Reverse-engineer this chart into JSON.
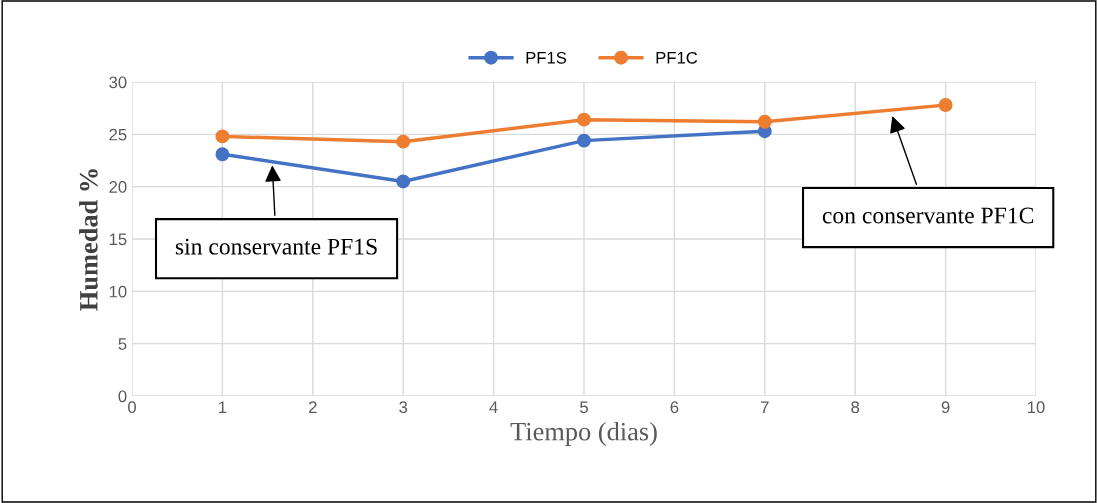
{
  "chart_data": {
    "type": "line",
    "xlabel": "Tiempo (dias)",
    "ylabel": "Humedad %",
    "xlim": [
      0,
      10
    ],
    "xticks": [
      0,
      1,
      2,
      3,
      4,
      5,
      6,
      7,
      8,
      9,
      10
    ],
    "ylim": [
      0,
      30
    ],
    "yticks": [
      0,
      5,
      10,
      15,
      20,
      25,
      30
    ],
    "grid": true,
    "legend": "top",
    "marker": "circle",
    "line_style": "solid",
    "series": [
      {
        "name": "PF1S",
        "color": "#4472c4",
        "x": [
          1,
          3,
          5,
          7
        ],
        "values": [
          23.1,
          20.5,
          24.4,
          25.3
        ]
      },
      {
        "name": "PF1C",
        "color": "#ed7d31",
        "x": [
          1,
          3,
          5,
          7,
          9
        ],
        "values": [
          24.8,
          24.3,
          26.4,
          26.2,
          27.8
        ]
      }
    ],
    "annotations": [
      {
        "text": "sin conservante PF1S",
        "x": 1.55,
        "y": 22.3
      },
      {
        "text": "con conservante PF1C",
        "x": 8.4,
        "y": 27.0
      }
    ]
  }
}
